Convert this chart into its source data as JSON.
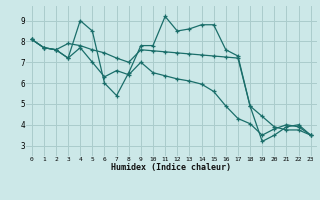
{
  "title": "",
  "xlabel": "Humidex (Indice chaleur)",
  "ylabel": "",
  "bg_color": "#cce8e8",
  "grid_color": "#aacccc",
  "line_color": "#1a6e6a",
  "xlim": [
    -0.5,
    23.5
  ],
  "ylim": [
    2.5,
    9.7
  ],
  "xticks": [
    0,
    1,
    2,
    3,
    4,
    5,
    6,
    7,
    8,
    9,
    10,
    11,
    12,
    13,
    14,
    15,
    16,
    17,
    18,
    19,
    20,
    21,
    22,
    23
  ],
  "yticks": [
    3,
    4,
    5,
    6,
    7,
    8,
    9
  ],
  "series": [
    [
      8.1,
      7.7,
      7.6,
      7.2,
      9.0,
      8.5,
      6.0,
      5.4,
      6.5,
      7.8,
      7.8,
      9.2,
      8.5,
      8.6,
      8.8,
      8.8,
      7.6,
      7.3,
      4.9,
      3.2,
      3.5,
      3.9,
      4.0,
      3.5
    ],
    [
      8.1,
      7.7,
      7.6,
      7.9,
      7.8,
      7.6,
      7.45,
      7.2,
      7.0,
      7.6,
      7.55,
      7.5,
      7.45,
      7.4,
      7.35,
      7.3,
      7.25,
      7.2,
      4.9,
      4.4,
      3.9,
      3.75,
      3.75,
      3.5
    ],
    [
      8.1,
      7.7,
      7.6,
      7.2,
      7.7,
      7.0,
      6.3,
      6.6,
      6.4,
      7.0,
      6.5,
      6.35,
      6.2,
      6.1,
      5.95,
      5.6,
      4.9,
      4.3,
      4.05,
      3.5,
      3.8,
      4.0,
      3.9,
      3.5
    ]
  ]
}
